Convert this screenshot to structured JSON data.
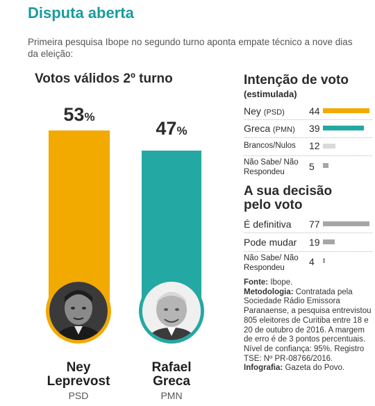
{
  "header": {
    "title": "Disputa aberta",
    "subtitle": "Primeira pesquisa Ibope no segundo turno aponta empate técnico a nove dias da eleição:"
  },
  "chart_data": [
    {
      "type": "bar",
      "title": "Votos válidos 2º turno",
      "categories": [
        "Ney Leprevost",
        "Rafael Greca"
      ],
      "values": [
        53,
        47
      ],
      "unit": "%",
      "ylim": [
        0,
        100
      ],
      "colors": [
        "#f2a900",
        "#24a8a3"
      ],
      "candidates": [
        {
          "first": "Ney",
          "last": "Leprevost",
          "party": "PSD",
          "value_text": "53",
          "unit": "%"
        },
        {
          "first": "Rafael",
          "last": "Greca",
          "party": "PMN",
          "value_text": "47",
          "unit": "%"
        }
      ]
    },
    {
      "type": "bar",
      "orientation": "horizontal",
      "title": "Intenção de voto",
      "subtitle": "(estimulada)",
      "rows": [
        {
          "label": "Ney",
          "party": "(PSD)",
          "value": 44,
          "color": "#f2a900"
        },
        {
          "label": "Greca",
          "party": "(PMN)",
          "value": 39,
          "color": "#24a8a3"
        },
        {
          "label": "Brancos/Nulos",
          "party": "",
          "value": 12,
          "color": "#d9d9d9"
        },
        {
          "label": "Não Sabe/ Não Respondeu",
          "party": "",
          "value": 5,
          "color": "#a6a6a6"
        }
      ]
    },
    {
      "type": "bar",
      "orientation": "horizontal",
      "title": "A sua decisão pelo voto",
      "rows": [
        {
          "label": "É definitiva",
          "value": 77,
          "color": "#a6a6a6"
        },
        {
          "label": "Pode mudar",
          "value": 19,
          "color": "#a6a6a6"
        },
        {
          "label": "Não Sabe/ Não Respondeu",
          "value": 4,
          "color": "#a6a6a6"
        }
      ]
    }
  ],
  "notes": {
    "fonte_label": "Fonte:",
    "fonte": "Ibope.",
    "metodologia_label": "Metodologia:",
    "metodologia": "Contratada pela Sociedade Rádio Emissora Paranaense, a pesquisa entrevistou 805 eleitores de Curitiba entre 18 e 20 de outubro de 2016. A margem de erro é de 3 pontos percentuais. Nível de confiança: 95%. Registro TSE: Nº PR-08766/2016.",
    "infografia_label": "Infografia:",
    "infografia": "Gazeta do Povo."
  }
}
